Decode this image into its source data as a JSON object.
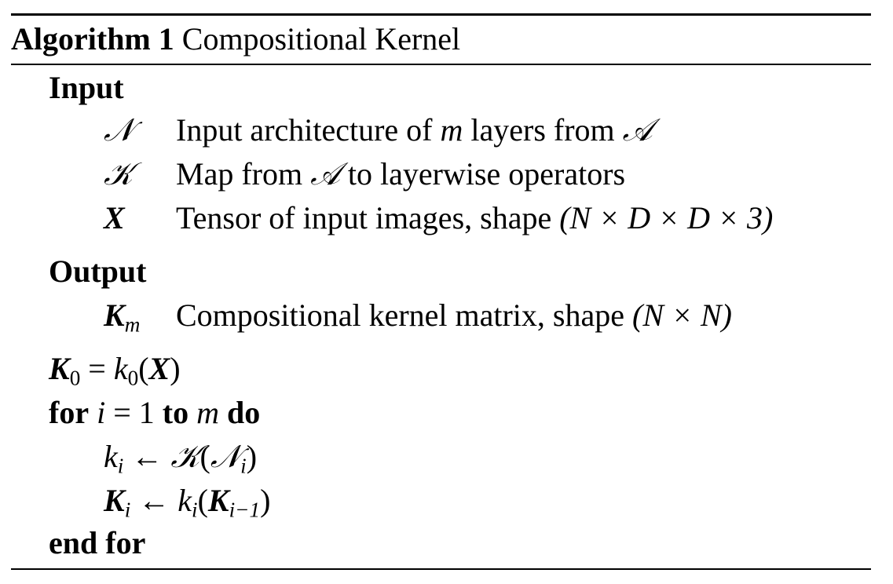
{
  "algorithm": {
    "label": "Algorithm 1",
    "title": "Compositional Kernel"
  },
  "input": {
    "heading": "Input",
    "items": [
      {
        "symbol": "𝒩",
        "desc_before": "Input architecture of",
        "var": "m",
        "desc_mid": "layers from",
        "desc_sym": "𝒜"
      },
      {
        "symbol": "𝒦",
        "desc_before": "Map from",
        "desc_sym": "𝒜",
        "desc_after": "to layerwise operators"
      },
      {
        "symbol": "X",
        "desc_before": "Tensor of input images, shape",
        "shape": "(N × D × D × 3)"
      }
    ]
  },
  "output": {
    "heading": "Output",
    "items": [
      {
        "symbol": "K",
        "sub": "m",
        "desc_before": "Compositional kernel matrix, shape",
        "shape": "(N × N)"
      }
    ]
  },
  "body": {
    "init": {
      "lhs": "K",
      "lhs_sub": "0",
      "eq": " = ",
      "fn": "k",
      "fn_sub": "0",
      "arg": "X"
    },
    "for_kw": "for",
    "for_var": "i",
    "for_eq": " = 1 ",
    "to_kw": "to",
    "for_end": "m",
    "do_kw": "do",
    "step1": {
      "lhs": "k",
      "lhs_sub": "i",
      "arrow": " ← ",
      "op": "𝒦",
      "arg": "𝒩",
      "arg_sub": "i"
    },
    "step2": {
      "lhs": "K",
      "lhs_sub": "i",
      "arrow": " ← ",
      "fn": "k",
      "fn_sub": "i",
      "arg": "K",
      "arg_sub": "i−1"
    },
    "end_kw": "end for"
  }
}
